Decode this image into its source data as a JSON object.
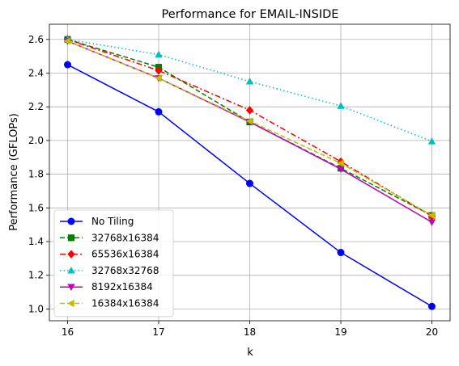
{
  "chart_data": {
    "type": "line",
    "title": "Performance for EMAIL-INSIDE",
    "xlabel": "k",
    "ylabel": "Performance (GFLOPs)",
    "x": [
      16,
      17,
      18,
      19,
      20
    ],
    "xlim": [
      15.8,
      20.2
    ],
    "ylim": [
      0.93,
      2.69
    ],
    "xticks": [
      "16",
      "17",
      "18",
      "19",
      "20"
    ],
    "yticks": [
      "1.0",
      "1.2",
      "1.4",
      "1.6",
      "1.8",
      "2.0",
      "2.2",
      "2.4",
      "2.6"
    ],
    "grid": true,
    "legend_position": "lower-left",
    "series": [
      {
        "name": "No Tiling",
        "values": [
          2.45,
          2.17,
          1.745,
          1.335,
          1.015
        ],
        "color": "#0000ff",
        "marker": "circle",
        "dash": "solid"
      },
      {
        "name": "32768x16384",
        "values": [
          2.6,
          2.435,
          2.11,
          1.835,
          1.555
        ],
        "color": "#008000",
        "marker": "square",
        "dash": "dashed"
      },
      {
        "name": "65536x16384",
        "values": [
          2.6,
          2.415,
          2.18,
          1.875,
          1.55
        ],
        "color": "#ff0000",
        "marker": "diamond",
        "dash": "dashdot"
      },
      {
        "name": "32768x32768",
        "values": [
          2.6,
          2.51,
          2.35,
          2.205,
          1.995
        ],
        "color": "#00bfbf",
        "marker": "triangle-up",
        "dash": "dotted"
      },
      {
        "name": "8192x16384",
        "values": [
          2.59,
          2.37,
          2.11,
          1.83,
          1.515
        ],
        "color": "#bf00bf",
        "marker": "triangle-down",
        "dash": "solid"
      },
      {
        "name": "16384x16384",
        "values": [
          2.59,
          2.37,
          2.115,
          1.865,
          1.555
        ],
        "color": "#bfbf00",
        "marker": "triangle-left",
        "dash": "dashed"
      }
    ]
  }
}
